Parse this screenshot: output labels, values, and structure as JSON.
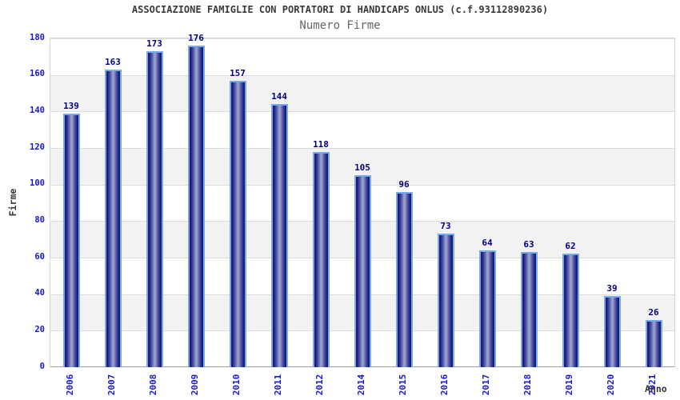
{
  "header": {
    "title": "ASSOCIAZIONE FAMIGLIE CON PORTATORI DI HANDICAPS ONLUS (c.f.93112890236)",
    "subtitle": "Numero Firme"
  },
  "chart_data": {
    "type": "bar",
    "title": "Numero Firme",
    "categories": [
      "2006",
      "2007",
      "2008",
      "2009",
      "2010",
      "2011",
      "2012",
      "2014",
      "2015",
      "2016",
      "2017",
      "2018",
      "2019",
      "2020",
      "2021"
    ],
    "values": [
      139,
      163,
      173,
      176,
      157,
      144,
      118,
      105,
      96,
      73,
      64,
      63,
      62,
      39,
      26
    ],
    "xlabel": "Anno",
    "ylabel": "Firme",
    "ylim": [
      0,
      180
    ],
    "ytick_step": 20,
    "grid": true,
    "legend": "none",
    "band_fill": "alternating gray/white horizontal bands",
    "colors": {
      "bar_edge": "#74aaf2",
      "bar_dark": "#16166e",
      "bar_light": "#9aa2d2",
      "tick_label": "#1717cd",
      "value_label": "#00007e",
      "band_gray": "#f2f2f2",
      "gridline": "#dcdcdc",
      "baseline": "#999999",
      "axis_title": "#333333",
      "title": "#3a3a3a",
      "subtitle": "#666666"
    }
  }
}
